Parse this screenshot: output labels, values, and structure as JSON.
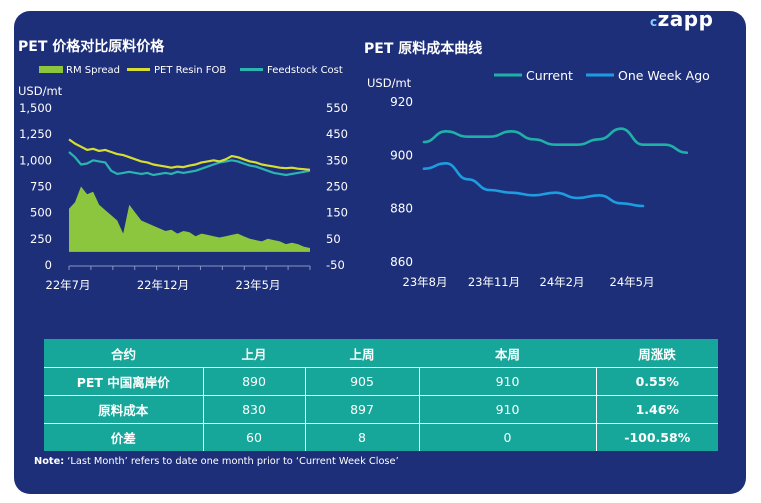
{
  "logo": "zapp",
  "chart_data": [
    {
      "type": "line",
      "title": "PET 价格对比原料价格",
      "ylabel": "USD/mt",
      "x_ticks": [
        "22年7月",
        "22年12月",
        "23年5月"
      ],
      "y_ticks": [
        "1,500",
        "1,250",
        "1,000",
        "750",
        "500",
        "250",
        "0"
      ],
      "y_right_ticks": [
        "550",
        "450",
        "350",
        "250",
        "150",
        "50",
        "-50"
      ],
      "ylim": [
        0,
        1500
      ],
      "y_right_lim": [
        -50,
        550
      ],
      "legend": [
        "RM Spread",
        "PET Resin FOB",
        "Feedstock Cost"
      ],
      "colors": {
        "rm_spread": "#8cc63f",
        "pet_resin": "#d8de2f",
        "feedstock": "#2ab5b0"
      },
      "series": [
        {
          "name": "PET Resin FOB",
          "axis": "left",
          "values": [
            1200,
            1160,
            1130,
            1100,
            1110,
            1090,
            1100,
            1080,
            1060,
            1050,
            1030,
            1010,
            990,
            980,
            960,
            950,
            940,
            930,
            940,
            935,
            950,
            960,
            980,
            990,
            1000,
            990,
            1010,
            1040,
            1030,
            1010,
            990,
            980,
            960,
            950,
            940,
            930,
            925,
            930,
            920,
            915,
            910
          ]
        },
        {
          "name": "Feedstock Cost",
          "axis": "left",
          "values": [
            1080,
            1030,
            960,
            970,
            1000,
            990,
            980,
            900,
            870,
            880,
            890,
            880,
            870,
            880,
            860,
            870,
            880,
            870,
            890,
            880,
            890,
            900,
            920,
            940,
            960,
            980,
            990,
            1000,
            990,
            970,
            950,
            940,
            920,
            900,
            880,
            870,
            860,
            870,
            880,
            890,
            900
          ]
        },
        {
          "name": "RM Spread",
          "axis": "right",
          "values": [
            165,
            190,
            250,
            220,
            230,
            180,
            160,
            140,
            120,
            70,
            180,
            150,
            120,
            110,
            100,
            90,
            80,
            85,
            70,
            80,
            75,
            60,
            70,
            65,
            60,
            55,
            60,
            65,
            70,
            60,
            50,
            45,
            40,
            50,
            45,
            40,
            30,
            35,
            30,
            20,
            15
          ]
        }
      ]
    },
    {
      "type": "line",
      "title": "PET 原料成本曲线",
      "ylabel": "USD/mt",
      "x_ticks": [
        "23年8月",
        "23年11月",
        "24年2月",
        "24年5月"
      ],
      "y_ticks": [
        "920",
        "900",
        "880",
        "860"
      ],
      "ylim": [
        860,
        920
      ],
      "legend": [
        "Current",
        "One Week Ago"
      ],
      "colors": {
        "current": "#1fb1a8",
        "week_ago": "#1e9ce0"
      },
      "series": [
        {
          "name": "Current",
          "values": [
            905,
            909,
            907,
            907,
            909,
            906,
            904,
            904,
            906,
            910,
            904,
            904,
            901
          ]
        },
        {
          "name": "One Week Ago",
          "values": [
            895,
            897,
            891,
            887,
            886,
            885,
            886,
            884,
            885,
            882,
            881
          ]
        }
      ]
    }
  ],
  "table": {
    "headers": [
      "合约",
      "上月",
      "上周",
      "本周",
      "周涨跌"
    ],
    "rows": [
      [
        "PET 中国离岸价",
        "890",
        "905",
        "910",
        "0.55%"
      ],
      [
        "原料成本",
        "830",
        "897",
        "910",
        "1.46%"
      ],
      [
        "价差",
        "60",
        "8",
        "0",
        "-100.58%"
      ]
    ]
  },
  "note": {
    "label": "Note:",
    "text": " ‘Last Month’ refers to date one month prior to ‘Current Week Close’"
  }
}
